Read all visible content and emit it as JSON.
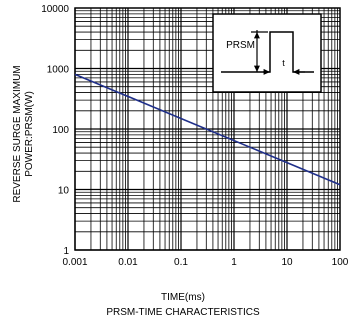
{
  "chart_data": {
    "type": "line",
    "title": "PRSM-TIME CHARACTERISTICS",
    "xlabel": "TIME(ms)",
    "ylabel_line1": "REVERSE SURGE MAXIMUM",
    "ylabel_line2": "POWER:PRSM(W)",
    "x_scale": "log",
    "y_scale": "log",
    "xlim": [
      0.001,
      100
    ],
    "ylim": [
      1,
      10000
    ],
    "x_ticks": [
      {
        "value": 0.001,
        "label": "0.001"
      },
      {
        "value": 0.01,
        "label": "0.01"
      },
      {
        "value": 0.1,
        "label": "0.1"
      },
      {
        "value": 1,
        "label": "1"
      },
      {
        "value": 10,
        "label": "10"
      },
      {
        "value": 100,
        "label": "100"
      }
    ],
    "y_ticks": [
      {
        "value": 1,
        "label": "1"
      },
      {
        "value": 10,
        "label": "10"
      },
      {
        "value": 100,
        "label": "100"
      },
      {
        "value": 1000,
        "label": "1000"
      },
      {
        "value": 10000,
        "label": "10000"
      }
    ],
    "grid": true,
    "series": [
      {
        "color": "#1f2f8a",
        "points": [
          {
            "x": 0.001,
            "y": 800
          },
          {
            "x": 100,
            "y": 12
          }
        ]
      }
    ],
    "inset": {
      "label_prsm": "PRSM",
      "label_t": "t"
    }
  }
}
